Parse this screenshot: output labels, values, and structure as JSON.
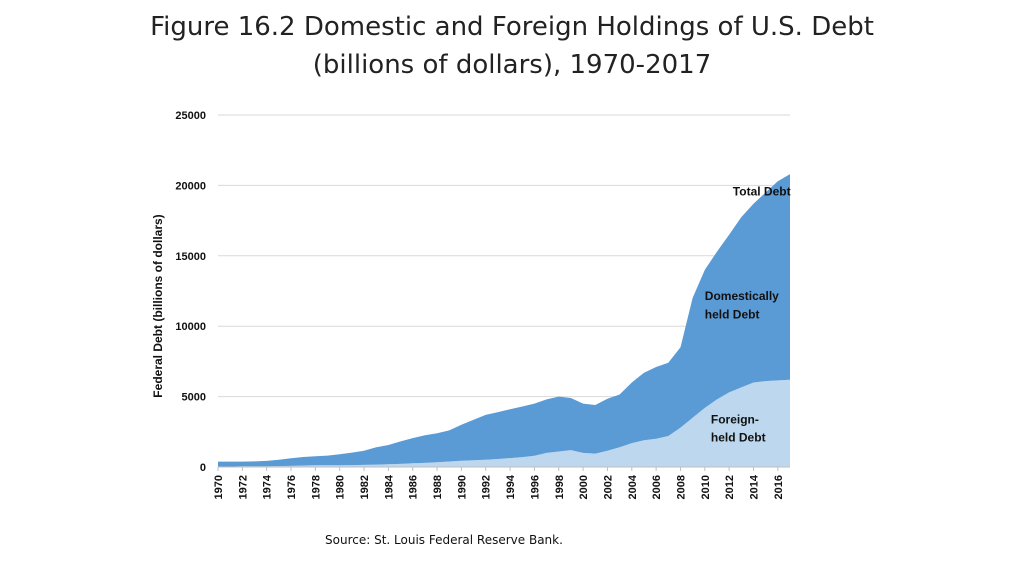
{
  "page": {
    "title_line1": "Figure 16.2 Domestic and Foreign Holdings of U.S. Debt",
    "title_line2": "(billions of dollars), 1970-2017",
    "source": "Source: St. Louis Federal Reserve Bank."
  },
  "chart_data": {
    "type": "area",
    "ylabel": "Federal Debt (billions of dollars)",
    "xlabel": "",
    "ylim": [
      0,
      25000
    ],
    "yticks": [
      0,
      5000,
      10000,
      15000,
      20000,
      25000
    ],
    "xticks": [
      "1970",
      "1972",
      "1974",
      "1976",
      "1978",
      "1980",
      "1982",
      "1984",
      "1986",
      "1988",
      "1990",
      "1992",
      "1994",
      "1996",
      "1998",
      "2000",
      "2002",
      "2004",
      "2006",
      "2008",
      "2010",
      "2012",
      "2014",
      "2016"
    ],
    "grid": true,
    "stacked": true,
    "x": [
      1970,
      1971,
      1972,
      1973,
      1974,
      1975,
      1976,
      1977,
      1978,
      1979,
      1980,
      1981,
      1982,
      1983,
      1984,
      1985,
      1986,
      1987,
      1988,
      1989,
      1990,
      1991,
      1992,
      1993,
      1994,
      1995,
      1996,
      1997,
      1998,
      1999,
      2000,
      2001,
      2002,
      2003,
      2004,
      2005,
      2006,
      2007,
      2008,
      2009,
      2010,
      2011,
      2012,
      2013,
      2014,
      2015,
      2016,
      2017
    ],
    "series": [
      {
        "name": "Foreign-held Debt",
        "color": "#bcd7ee",
        "values": [
          20,
          30,
          50,
          60,
          60,
          70,
          80,
          110,
          130,
          120,
          130,
          135,
          150,
          170,
          200,
          220,
          260,
          290,
          340,
          390,
          440,
          480,
          520,
          570,
          630,
          700,
          800,
          1000,
          1100,
          1200,
          1000,
          950,
          1150,
          1400,
          1700,
          1900,
          2000,
          2200,
          2800,
          3500,
          4200,
          4800,
          5300,
          5650,
          6000,
          6100,
          6150,
          6200
        ]
      },
      {
        "name": "Domestically held Debt",
        "color": "#5b9bd5",
        "values": [
          360,
          350,
          330,
          340,
          370,
          450,
          540,
          600,
          640,
          690,
          770,
          890,
          1000,
          1230,
          1360,
          1600,
          1790,
          1960,
          2060,
          2210,
          2560,
          2880,
          3180,
          3330,
          3470,
          3600,
          3700,
          3800,
          3900,
          3700,
          3500,
          3450,
          3700,
          3750,
          4300,
          4800,
          5100,
          5200,
          5700,
          8500,
          9800,
          10500,
          11200,
          12100,
          12700,
          13400,
          14150,
          14600
        ]
      }
    ],
    "totals": [
      380,
      380,
      380,
      400,
      430,
      520,
      620,
      710,
      770,
      810,
      900,
      1025,
      1150,
      1400,
      1560,
      1820,
      2050,
      2250,
      2400,
      2600,
      3000,
      3360,
      3700,
      3900,
      4100,
      4300,
      4500,
      4800,
      5000,
      4900,
      4500,
      4400,
      4850,
      5150,
      6000,
      6700,
      7100,
      7400,
      8500,
      12000,
      14000,
      15300,
      16500,
      17750,
      18700,
      19500,
      20300,
      20800
    ],
    "annotations": [
      {
        "text": "Total Debt",
        "x": 2012.3,
        "y": 19300
      },
      {
        "text": "Domestically",
        "x": 2010.0,
        "y": 11850
      },
      {
        "text": "held Debt",
        "x": 2010.0,
        "y": 10550
      },
      {
        "text": "Foreign-",
        "x": 2010.5,
        "y": 3100
      },
      {
        "text": "held Debt",
        "x": 2010.5,
        "y": 1800
      }
    ]
  }
}
